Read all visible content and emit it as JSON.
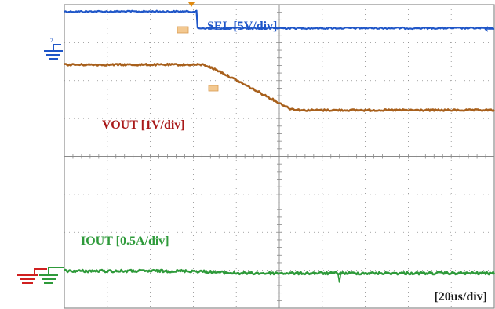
{
  "chart_data": {
    "type": "line",
    "title": "",
    "xlabel": "",
    "ylabel": "",
    "grid": true,
    "divisions": {
      "x": 10,
      "y": 8
    },
    "timebase_label": "[20us/div]",
    "x_unit": "us",
    "xlim": [
      0,
      200
    ],
    "series": [
      {
        "name": "SEL [5V/div]",
        "color": "#1f56c8",
        "ground_div": 6.8,
        "x": [
          0,
          62,
          62,
          200
        ],
        "div": [
          7.82,
          7.82,
          7.38,
          7.38
        ]
      },
      {
        "name": "VOUT [1V/div]",
        "color": "#a8601c",
        "ground_div": 5.8,
        "x": [
          0,
          65,
          72,
          105,
          110,
          200
        ],
        "div": [
          6.42,
          6.42,
          6.25,
          5.26,
          5.22,
          5.22
        ]
      },
      {
        "name": "IOUT [0.5A/div]",
        "color": "#2e9a3a",
        "ground_div": 0.9,
        "x": [
          0,
          60,
          80,
          200
        ],
        "div": [
          0.98,
          0.98,
          0.92,
          0.92
        ]
      }
    ]
  },
  "colors": {
    "sel": "#1f56c8",
    "vout": "#a8601c",
    "iout": "#2e9a3a",
    "vout_label": "#a81818",
    "ground_red": "#d02020",
    "grid": "#8a8a8a",
    "frame": "#8c8c8c"
  }
}
